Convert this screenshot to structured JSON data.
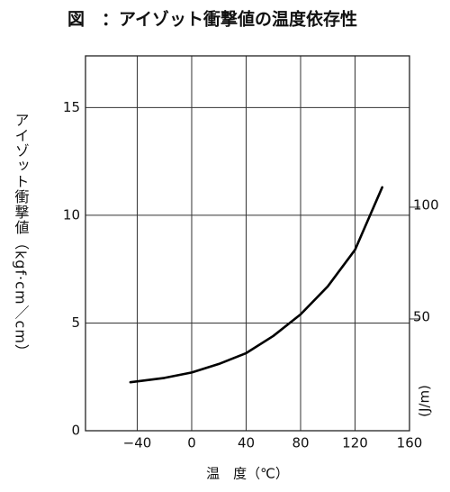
{
  "chart_data": {
    "type": "line",
    "title": "図　：アイゾット衝撃値の温度依存性",
    "x_label": "温　度（℃）",
    "y_label": "アイゾット衝撃値（kgf·cm／cm）",
    "y2_label": "(J/m)",
    "x": [
      -45,
      -20,
      0,
      20,
      40,
      60,
      80,
      100,
      120,
      140
    ],
    "values": [
      2.25,
      2.45,
      2.7,
      3.1,
      3.6,
      4.4,
      5.4,
      6.7,
      8.4,
      11.3
    ],
    "color": "#000000",
    "xlim": [
      -78,
      160
    ],
    "xticks": [
      {
        "value": -40,
        "label": "−40"
      },
      0,
      40,
      80,
      120,
      160
    ],
    "ylim": [
      0,
      17.4
    ],
    "yticks": [
      0,
      5,
      10,
      15
    ],
    "y2lim": [
      0,
      167.7
    ],
    "y2ticks": [
      50,
      100
    ],
    "grid": true
  }
}
